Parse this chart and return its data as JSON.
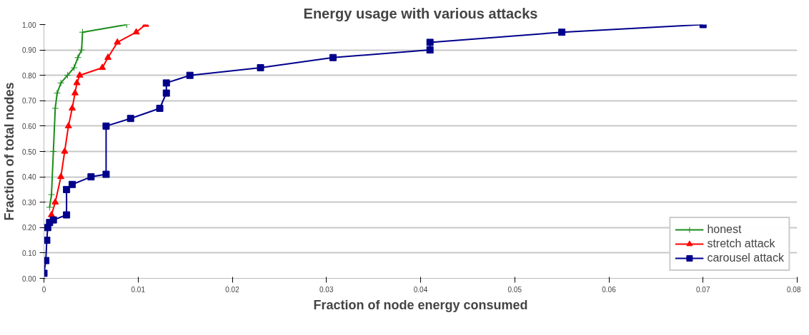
{
  "chart_data": {
    "type": "line",
    "title": "Energy usage with various attacks",
    "xlabel": "Fraction of node energy consumed",
    "ylabel": "Fraction of total nodes",
    "xlim": [
      0,
      0.08
    ],
    "xticks": [
      0,
      0.01,
      0.02,
      0.03,
      0.04,
      0.05,
      0.06,
      0.07,
      0.08
    ],
    "ylim": [
      0,
      1
    ],
    "yticks": [
      {
        "value": 0,
        "label": "0.00"
      },
      {
        "value": 0.1,
        "label": "0.10"
      },
      {
        "value": 0.2,
        "label": "0.20"
      },
      {
        "value": 0.3,
        "label": "0.30"
      },
      {
        "value": 0.4,
        "label": "0.40"
      },
      {
        "value": 0.5,
        "label": "0.50"
      },
      {
        "value": 0.6,
        "label": "0.60"
      },
      {
        "value": 0.7,
        "label": "0.70"
      },
      {
        "value": 0.8,
        "label": "0.80"
      },
      {
        "value": 0.9,
        "label": "0.90"
      },
      {
        "value": 1,
        "label": "1.00"
      }
    ],
    "grid": "y",
    "legend": "bottom right",
    "line_style": "solid",
    "series": [
      {
        "name": "honest",
        "color": "#1a8c1a",
        "marker": "cross",
        "x": [
          0.0006,
          0.0008,
          0.001,
          0.0012,
          0.0014,
          0.0018,
          0.0025,
          0.0032,
          0.0036,
          0.004,
          0.0041,
          0.0088
        ],
        "values": [
          0.28,
          0.33,
          0.5,
          0.67,
          0.73,
          0.77,
          0.8,
          0.83,
          0.87,
          0.9,
          0.97,
          1.0
        ]
      },
      {
        "name": "stretch attack",
        "color": "#ff0000",
        "marker": "triangle",
        "x": [
          0.0008,
          0.0012,
          0.0018,
          0.0022,
          0.0026,
          0.003,
          0.0033,
          0.0035,
          0.0038,
          0.0062,
          0.0068,
          0.0078,
          0.0098,
          0.0108
        ],
        "values": [
          0.25,
          0.3,
          0.4,
          0.5,
          0.6,
          0.67,
          0.73,
          0.77,
          0.8,
          0.83,
          0.87,
          0.93,
          0.97,
          1.0
        ]
      },
      {
        "name": "carousel attack",
        "color": "#00008b",
        "marker": "square",
        "x": [
          0,
          0.0002,
          0.0003,
          0.0004,
          0.0006,
          0.001,
          0.0024,
          0.0024,
          0.003,
          0.005,
          0.0066,
          0.0066,
          0.0092,
          0.0123,
          0.013,
          0.013,
          0.0155,
          0.023,
          0.0307,
          0.041,
          0.041,
          0.055,
          0.07
        ],
        "values": [
          0.02,
          0.07,
          0.15,
          0.2,
          0.22,
          0.23,
          0.25,
          0.35,
          0.37,
          0.4,
          0.41,
          0.6,
          0.63,
          0.67,
          0.73,
          0.77,
          0.8,
          0.83,
          0.87,
          0.9,
          0.93,
          0.97,
          1.0
        ]
      }
    ]
  }
}
